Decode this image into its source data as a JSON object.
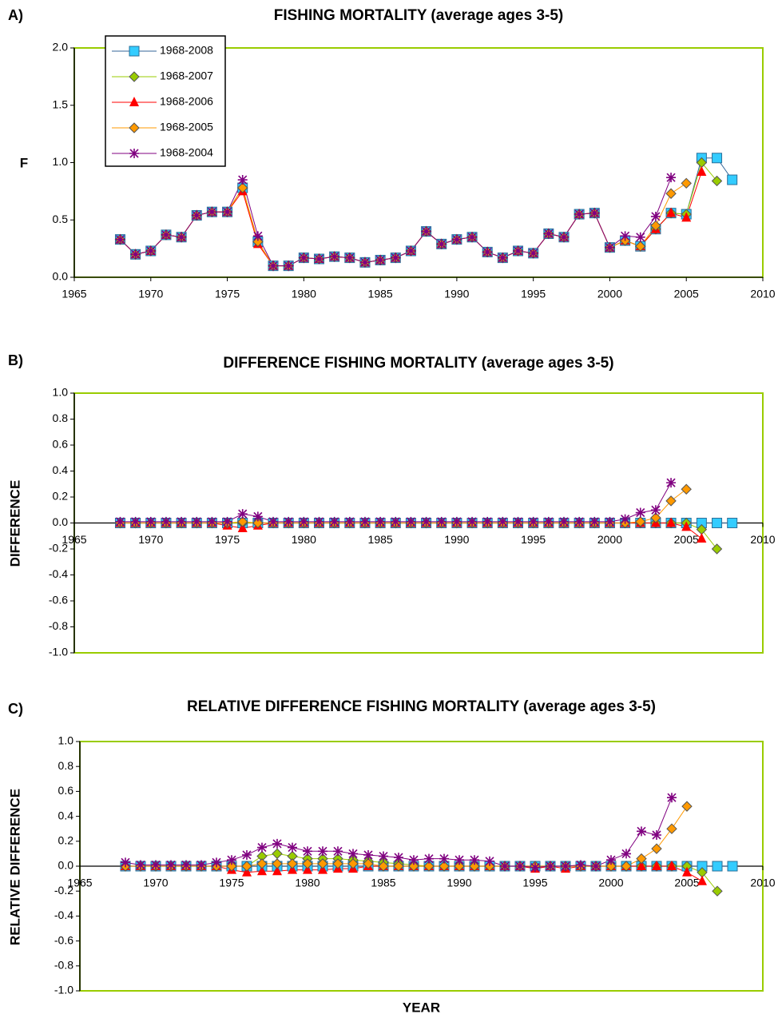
{
  "chart_data": [
    {
      "type": "line",
      "label": "A)",
      "title": "FISHING MORTALITY (average ages 3-5)",
      "ylabel": "F",
      "xlim": [
        1965,
        2010
      ],
      "xticks": [
        1965,
        1970,
        1975,
        1980,
        1985,
        1990,
        1995,
        2000,
        2005,
        2010
      ],
      "ylim": [
        0,
        2
      ],
      "yticks": [
        {
          "value": 0,
          "label": "0.0"
        },
        0.5,
        {
          "value": 1,
          "label": "1.0"
        },
        1.5,
        {
          "value": 2,
          "label": "2.0"
        }
      ],
      "legend": "top-left",
      "x": [
        1968,
        1969,
        1970,
        1971,
        1972,
        1973,
        1974,
        1975,
        1976,
        1977,
        1978,
        1979,
        1980,
        1981,
        1982,
        1983,
        1984,
        1985,
        1986,
        1987,
        1988,
        1989,
        1990,
        1991,
        1992,
        1993,
        1994,
        1995,
        1996,
        1997,
        1998,
        1999,
        2000,
        2001,
        2002,
        2003,
        2004,
        2005,
        2006,
        2007,
        2008
      ],
      "series": [
        {
          "name": "1968-2008",
          "color": "#33ccff",
          "line_color": "#336699",
          "marker": "square",
          "values": [
            0.33,
            0.2,
            0.23,
            0.37,
            0.35,
            0.54,
            0.57,
            0.57,
            0.78,
            0.31,
            0.1,
            0.1,
            0.17,
            0.16,
            0.18,
            0.17,
            0.13,
            0.15,
            0.17,
            0.23,
            0.4,
            0.29,
            0.33,
            0.35,
            0.22,
            0.17,
            0.23,
            0.21,
            0.38,
            0.35,
            0.55,
            0.56,
            0.26,
            0.32,
            0.27,
            0.42,
            0.56,
            0.55,
            1.04,
            1.04,
            0.85
          ]
        },
        {
          "name": "1968-2007",
          "color": "#99cc00",
          "line_color": "#99cc00",
          "marker": "diamond",
          "values": [
            0.33,
            0.2,
            0.23,
            0.37,
            0.35,
            0.54,
            0.57,
            0.57,
            0.78,
            0.31,
            0.1,
            0.1,
            0.17,
            0.16,
            0.18,
            0.17,
            0.13,
            0.15,
            0.17,
            0.23,
            0.4,
            0.29,
            0.33,
            0.35,
            0.22,
            0.17,
            0.23,
            0.21,
            0.38,
            0.35,
            0.55,
            0.56,
            0.26,
            0.32,
            0.27,
            0.42,
            0.56,
            0.55,
            1.0,
            0.84,
            null
          ]
        },
        {
          "name": "1968-2006",
          "color": "#ff0000",
          "line_color": "#ff0000",
          "marker": "triangle",
          "values": [
            0.33,
            0.2,
            0.23,
            0.37,
            0.35,
            0.54,
            0.57,
            0.57,
            0.75,
            0.29,
            0.1,
            0.1,
            0.17,
            0.16,
            0.18,
            0.17,
            0.13,
            0.15,
            0.17,
            0.23,
            0.4,
            0.29,
            0.33,
            0.35,
            0.22,
            0.17,
            0.23,
            0.21,
            0.38,
            0.35,
            0.55,
            0.56,
            0.26,
            0.32,
            0.27,
            0.42,
            0.56,
            0.52,
            0.92,
            null,
            null
          ]
        },
        {
          "name": "1968-2005",
          "color": "#ff9900",
          "line_color": "#ff9900",
          "marker": "diamond",
          "values": [
            0.33,
            0.2,
            0.23,
            0.37,
            0.35,
            0.54,
            0.57,
            0.57,
            0.78,
            0.31,
            0.1,
            0.1,
            0.17,
            0.16,
            0.18,
            0.17,
            0.13,
            0.15,
            0.17,
            0.23,
            0.4,
            0.29,
            0.33,
            0.35,
            0.22,
            0.17,
            0.23,
            0.21,
            0.38,
            0.35,
            0.55,
            0.56,
            0.26,
            0.32,
            0.27,
            0.45,
            0.73,
            0.82,
            null,
            null,
            null
          ]
        },
        {
          "name": "1968-2004",
          "color": "#800080",
          "line_color": "#800080",
          "marker": "star",
          "values": [
            0.33,
            0.2,
            0.23,
            0.37,
            0.35,
            0.54,
            0.57,
            0.57,
            0.85,
            0.36,
            0.1,
            0.1,
            0.17,
            0.16,
            0.18,
            0.17,
            0.13,
            0.15,
            0.17,
            0.23,
            0.4,
            0.29,
            0.33,
            0.35,
            0.22,
            0.17,
            0.23,
            0.21,
            0.38,
            0.35,
            0.55,
            0.56,
            0.26,
            0.36,
            0.35,
            0.53,
            0.87,
            null,
            null,
            null,
            null
          ]
        }
      ]
    },
    {
      "type": "line",
      "label": "B)",
      "title": "DIFFERENCE FISHING MORTALITY (average ages 3-5)",
      "ylabel": "DIFFERENCE",
      "xlim": [
        1965,
        2010
      ],
      "xticks": [
        1965,
        1970,
        1975,
        1980,
        1985,
        1990,
        1995,
        2000,
        2005,
        2010
      ],
      "ylim": [
        -1,
        1
      ],
      "yticks": [
        {
          "value": -1,
          "label": "-1.0"
        },
        -0.8,
        -0.6,
        -0.4,
        -0.2,
        {
          "value": 0,
          "label": "0.0"
        },
        0.2,
        0.4,
        0.6,
        0.8,
        {
          "value": 1,
          "label": "1.0"
        }
      ],
      "x": [
        1968,
        1969,
        1970,
        1971,
        1972,
        1973,
        1974,
        1975,
        1976,
        1977,
        1978,
        1979,
        1980,
        1981,
        1982,
        1983,
        1984,
        1985,
        1986,
        1987,
        1988,
        1989,
        1990,
        1991,
        1992,
        1993,
        1994,
        1995,
        1996,
        1997,
        1998,
        1999,
        2000,
        2001,
        2002,
        2003,
        2004,
        2005,
        2006,
        2007,
        2008
      ],
      "series": [
        {
          "color": "#33ccff",
          "line_color": "#336699",
          "marker": "square",
          "values": [
            0,
            0,
            0,
            0,
            0,
            0,
            0,
            0,
            0,
            0,
            0,
            0,
            0,
            0,
            0,
            0,
            0,
            0,
            0,
            0,
            0,
            0,
            0,
            0,
            0,
            0,
            0,
            0,
            0,
            0,
            0,
            0,
            0,
            0,
            0,
            0,
            0,
            0,
            0,
            0,
            0
          ]
        },
        {
          "color": "#99cc00",
          "line_color": "#99cc00",
          "marker": "diamond",
          "values": [
            0,
            0,
            0,
            0,
            0,
            0,
            0,
            0,
            0,
            0,
            0,
            0,
            0,
            0,
            0,
            0,
            0,
            0,
            0,
            0,
            0,
            0,
            0,
            0,
            0,
            0,
            0,
            0,
            0,
            0,
            0,
            0,
            0,
            0,
            0,
            0,
            0,
            0,
            -0.05,
            -0.2,
            null
          ]
        },
        {
          "color": "#ff0000",
          "line_color": "#ff0000",
          "marker": "triangle",
          "values": [
            0,
            0,
            0,
            0,
            0,
            0,
            0,
            -0.02,
            -0.04,
            -0.02,
            0,
            0,
            0,
            0,
            0,
            0,
            0,
            0,
            0,
            0,
            0,
            0,
            0,
            0,
            0,
            0,
            0,
            0,
            0,
            0,
            0,
            0,
            0,
            0,
            0,
            0,
            0,
            -0.03,
            -0.12,
            null,
            null
          ]
        },
        {
          "color": "#ff9900",
          "line_color": "#ff9900",
          "marker": "diamond",
          "values": [
            0,
            0,
            0,
            0,
            0,
            0,
            0,
            0,
            0.01,
            0,
            0,
            0,
            0,
            0,
            0,
            0,
            0,
            0,
            0,
            0,
            0,
            0,
            0,
            0,
            0,
            0,
            0,
            0,
            0,
            0,
            0,
            0,
            0,
            0,
            0.01,
            0.04,
            0.17,
            0.26,
            null,
            null,
            null
          ]
        },
        {
          "color": "#800080",
          "line_color": "#800080",
          "marker": "star",
          "values": [
            0.01,
            0.01,
            0.01,
            0.01,
            0.01,
            0.01,
            0.01,
            0.01,
            0.07,
            0.05,
            0.01,
            0.01,
            0.01,
            0.01,
            0.01,
            0.01,
            0.01,
            0.01,
            0.01,
            0.01,
            0.01,
            0.01,
            0.01,
            0.01,
            0.01,
            0.01,
            0.01,
            0.01,
            0.01,
            0.01,
            0.01,
            0.01,
            0.01,
            0.03,
            0.08,
            0.1,
            0.31,
            null,
            null,
            null,
            null
          ]
        }
      ]
    },
    {
      "type": "line",
      "label": "C)",
      "title": "RELATIVE DIFFERENCE FISHING MORTALITY (average ages 3-5)",
      "ylabel": "RELATIVE DIFFERENCE",
      "xlabel": "YEAR",
      "xlim": [
        1965,
        2010
      ],
      "xticks": [
        1965,
        1970,
        1975,
        1980,
        1985,
        1990,
        1995,
        2000,
        2005,
        2010
      ],
      "ylim": [
        -1,
        1
      ],
      "yticks": [
        {
          "value": -1,
          "label": "-1.0"
        },
        -0.8,
        -0.6,
        -0.4,
        -0.2,
        {
          "value": 0,
          "label": "0.0"
        },
        0.2,
        0.4,
        0.6,
        0.8,
        {
          "value": 1,
          "label": "1.0"
        }
      ],
      "x": [
        1968,
        1969,
        1970,
        1971,
        1972,
        1973,
        1974,
        1975,
        1976,
        1977,
        1978,
        1979,
        1980,
        1981,
        1982,
        1983,
        1984,
        1985,
        1986,
        1987,
        1988,
        1989,
        1990,
        1991,
        1992,
        1993,
        1994,
        1995,
        1996,
        1997,
        1998,
        1999,
        2000,
        2001,
        2002,
        2003,
        2004,
        2005,
        2006,
        2007,
        2008
      ],
      "series": [
        {
          "color": "#33ccff",
          "line_color": "#336699",
          "marker": "square",
          "values": [
            0,
            0,
            0,
            0,
            0,
            0,
            0,
            0,
            0,
            0,
            0,
            0,
            0,
            0,
            0,
            0,
            0,
            0,
            0,
            0,
            0,
            0,
            0,
            0,
            0,
            0,
            0,
            0,
            0,
            0,
            0,
            0,
            0,
            0,
            0,
            0,
            0,
            0,
            0,
            0,
            0
          ]
        },
        {
          "color": "#99cc00",
          "line_color": "#99cc00",
          "marker": "diamond",
          "values": [
            0,
            0,
            0,
            0,
            0,
            0,
            0,
            0,
            0,
            0.08,
            0.1,
            0.08,
            0.06,
            0.06,
            0.06,
            0.05,
            0.04,
            0.03,
            0.02,
            0.01,
            0,
            0,
            0,
            0,
            0,
            0,
            0,
            0,
            0,
            0,
            0,
            0,
            0,
            0,
            0,
            0,
            0,
            0,
            -0.05,
            -0.2,
            null
          ]
        },
        {
          "color": "#ff0000",
          "line_color": "#ff0000",
          "marker": "triangle",
          "values": [
            0,
            0,
            0,
            0,
            0,
            0,
            0,
            -0.03,
            -0.05,
            -0.04,
            -0.04,
            -0.03,
            -0.03,
            -0.03,
            -0.02,
            -0.02,
            0,
            0,
            0,
            0,
            0,
            0,
            0,
            0,
            0,
            0,
            0,
            -0.02,
            0,
            -0.02,
            0,
            0,
            0,
            0,
            0,
            0,
            0,
            -0.05,
            -0.12,
            null,
            null
          ]
        },
        {
          "color": "#ff9900",
          "line_color": "#ff9900",
          "marker": "diamond",
          "values": [
            0,
            0,
            0,
            0,
            0,
            0,
            0,
            0,
            0,
            0.02,
            0.02,
            0.02,
            0.02,
            0.02,
            0.02,
            0.02,
            0.02,
            0,
            0,
            0,
            0,
            0,
            0,
            0,
            0,
            0,
            0,
            0,
            0,
            0,
            0,
            0,
            0,
            0,
            0.06,
            0.14,
            0.3,
            0.48,
            null,
            null,
            null
          ]
        },
        {
          "color": "#800080",
          "line_color": "#800080",
          "marker": "star",
          "values": [
            0.03,
            0.01,
            0.01,
            0.01,
            0.01,
            0.01,
            0.03,
            0.05,
            0.09,
            0.15,
            0.18,
            0.15,
            0.12,
            0.12,
            0.12,
            0.1,
            0.09,
            0.08,
            0.07,
            0.05,
            0.06,
            0.06,
            0.05,
            0.05,
            0.04,
            0,
            0,
            -0.01,
            0,
            0,
            0.01,
            0,
            0.05,
            0.1,
            0.28,
            0.25,
            0.55,
            null,
            null,
            null,
            null
          ]
        }
      ]
    }
  ]
}
